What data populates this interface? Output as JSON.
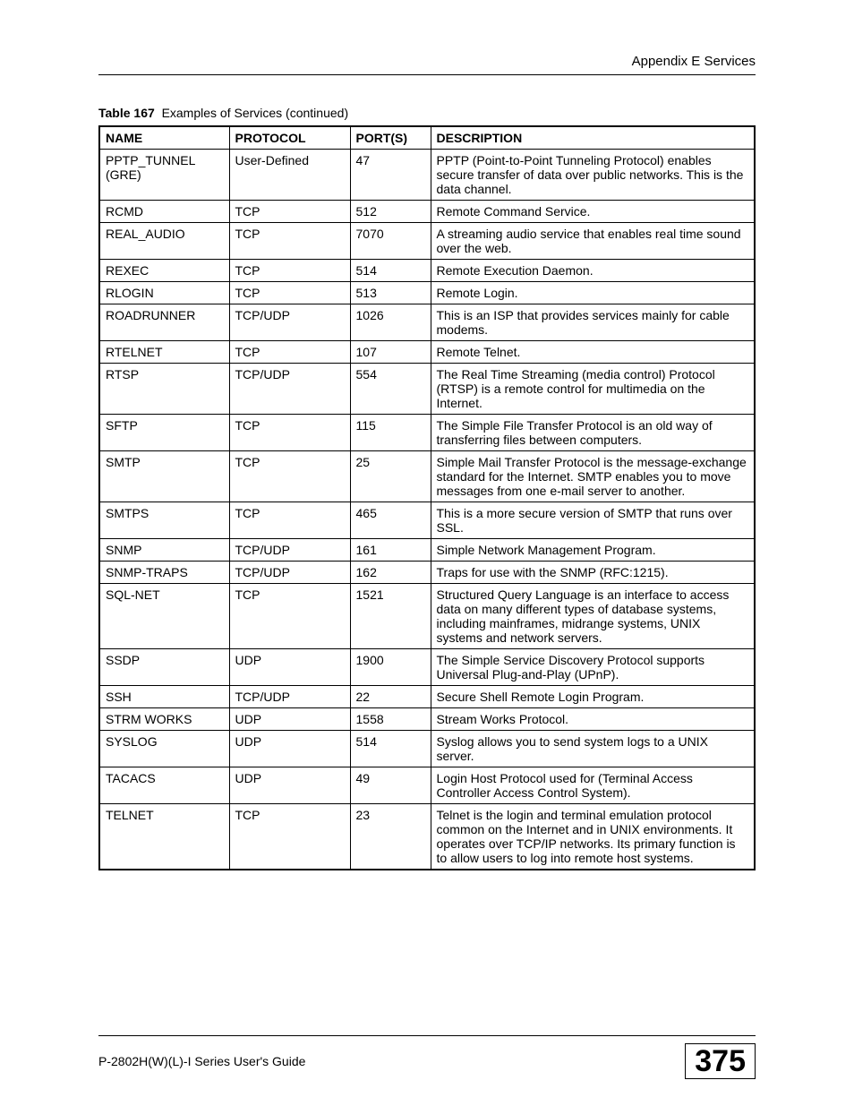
{
  "header": {
    "section": "Appendix E Services"
  },
  "caption": {
    "label": "Table 167",
    "title": "Examples of Services (continued)"
  },
  "table": {
    "columns": [
      "NAME",
      "PROTOCOL",
      "PORT(S)",
      "DESCRIPTION"
    ],
    "rows": [
      {
        "name": "PPTP_TUNNEL (GRE)",
        "protocol": "User-Defined",
        "port": "47",
        "description": "PPTP (Point-to-Point Tunneling Protocol) enables secure transfer of data over public networks. This is the data channel."
      },
      {
        "name": "RCMD",
        "protocol": "TCP",
        "port": "512",
        "description": "Remote Command Service."
      },
      {
        "name": "REAL_AUDIO",
        "protocol": "TCP",
        "port": "7070",
        "description": "A streaming audio service that enables real time sound over the web."
      },
      {
        "name": "REXEC",
        "protocol": "TCP",
        "port": "514",
        "description": "Remote Execution Daemon."
      },
      {
        "name": "RLOGIN",
        "protocol": "TCP",
        "port": "513",
        "description": "Remote Login."
      },
      {
        "name": "ROADRUNNER",
        "protocol": "TCP/UDP",
        "port": "1026",
        "description": "This is an ISP that provides services mainly for cable modems."
      },
      {
        "name": "RTELNET",
        "protocol": "TCP",
        "port": "107",
        "description": "Remote Telnet."
      },
      {
        "name": "RTSP",
        "protocol": "TCP/UDP",
        "port": "554",
        "description": "The Real Time Streaming (media control) Protocol (RTSP) is a remote control for multimedia on the Internet."
      },
      {
        "name": "SFTP",
        "protocol": "TCP",
        "port": "115",
        "description": "The Simple File Transfer Protocol is an old way of transferring files between computers."
      },
      {
        "name": "SMTP",
        "protocol": "TCP",
        "port": "25",
        "description": "Simple Mail Transfer Protocol is the message-exchange standard for the Internet. SMTP enables you to move messages from one e-mail server to another."
      },
      {
        "name": "SMTPS",
        "protocol": "TCP",
        "port": "465",
        "description": "This is a more secure version of SMTP that runs over SSL."
      },
      {
        "name": "SNMP",
        "protocol": "TCP/UDP",
        "port": "161",
        "description": "Simple Network Management Program."
      },
      {
        "name": "SNMP-TRAPS",
        "protocol": "TCP/UDP",
        "port": "162",
        "description": "Traps for use with the SNMP (RFC:1215)."
      },
      {
        "name": "SQL-NET",
        "protocol": "TCP",
        "port": "1521",
        "description": "Structured Query Language is an interface to access data on many different types of database systems, including mainframes, midrange systems, UNIX systems and network servers."
      },
      {
        "name": "SSDP",
        "protocol": "UDP",
        "port": "1900",
        "description": "The Simple Service Discovery Protocol supports Universal Plug-and-Play (UPnP)."
      },
      {
        "name": "SSH",
        "protocol": "TCP/UDP",
        "port": "22",
        "description": "Secure Shell Remote Login Program."
      },
      {
        "name": "STRM WORKS",
        "protocol": "UDP",
        "port": "1558",
        "description": "Stream Works Protocol."
      },
      {
        "name": "SYSLOG",
        "protocol": "UDP",
        "port": "514",
        "description": "Syslog allows you to send system logs to a UNIX server."
      },
      {
        "name": "TACACS",
        "protocol": "UDP",
        "port": "49",
        "description": "Login Host Protocol used for (Terminal Access Controller Access Control System)."
      },
      {
        "name": "TELNET",
        "protocol": "TCP",
        "port": "23",
        "description": "Telnet is the login and terminal emulation protocol common on the Internet and in UNIX environments. It operates over TCP/IP networks. Its primary function is to allow users to log into remote host systems."
      }
    ]
  },
  "footer": {
    "guide": "P-2802H(W)(L)-I Series User's Guide",
    "page": "375"
  }
}
